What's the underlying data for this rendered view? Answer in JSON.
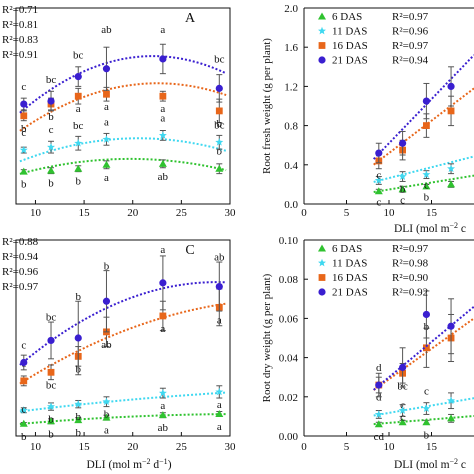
{
  "colors": {
    "d6": "#2fc22f",
    "d11": "#3fd8f0",
    "d16": "#e8661a",
    "d21": "#3a1fd0",
    "axis": "#111111",
    "errorbar": "#555555"
  },
  "chart_data": [
    {
      "id": "A",
      "type": "scatter",
      "panel_label": "A",
      "xlabel": "",
      "ylabel": "",
      "xlim": [
        8,
        30
      ],
      "xticks": [
        10,
        15,
        20,
        25,
        30
      ],
      "ylim": [
        0,
        2.0
      ],
      "grid": false,
      "r2_labels": [
        "R²=0.71",
        "R²=0.81",
        "R²=0.83",
        "R²=0.91"
      ],
      "x": [
        8.8,
        11.6,
        14.4,
        17.3,
        23.1,
        28.9
      ],
      "series": [
        {
          "key": "d6",
          "values": [
            0.33,
            0.34,
            0.36,
            0.4,
            0.41,
            0.36
          ],
          "err": [
            0.02,
            0.03,
            0.03,
            0.04,
            0.04,
            0.05
          ],
          "fit": [
            -0.00118,
            0.0466,
            0.0
          ],
          "letters": [
            {
              "t": "b",
              "dy": 16
            },
            {
              "t": "b",
              "dy": 16
            },
            {
              "t": "b",
              "dy": 16
            },
            {
              "t": "a",
              "dy": 16
            },
            {
              "t": "ab",
              "dy": 16
            },
            {
              "t": "b",
              "dy": -14
            }
          ]
        },
        {
          "key": "d11",
          "values": [
            0.55,
            0.58,
            0.62,
            0.66,
            0.7,
            0.63
          ],
          "err": [
            0.03,
            0.06,
            0.07,
            0.06,
            0.05,
            0.07
          ],
          "fit": [
            -0.00158,
            0.0651,
            0.0
          ],
          "letters": [
            {
              "t": "c",
              "dy": -14
            },
            {
              "t": "c",
              "dy": -14
            },
            {
              "t": "bc",
              "dy": -14
            },
            {
              "t": "a",
              "dy": -14
            },
            {
              "t": "a",
              "dy": -14
            },
            {
              "t": "bc",
              "dy": -14
            }
          ]
        },
        {
          "key": "d16",
          "values": [
            0.9,
            1.02,
            1.1,
            1.12,
            1.1,
            0.95
          ],
          "err": [
            0.05,
            0.06,
            0.08,
            0.07,
            0.05,
            0.12
          ],
          "fit": [
            -0.00242,
            0.1092,
            0.0
          ],
          "letters": [
            {
              "t": "b",
              "dy": 16
            },
            {
              "t": "b",
              "dy": 16
            },
            {
              "t": "a",
              "dy": 16
            },
            {
              "t": "a",
              "dy": 16
            },
            {
              "t": "a",
              "dy": 16
            },
            {
              "t": "b",
              "dy": 16
            }
          ]
        },
        {
          "key": "d21",
          "values": [
            1.02,
            1.05,
            1.3,
            1.38,
            1.48,
            1.18
          ],
          "err": [
            0.06,
            0.1,
            0.1,
            0.22,
            0.15,
            0.14
          ],
          "fit": [
            -0.0031,
            0.1368,
            0.0
          ],
          "letters": [
            {
              "t": "c",
              "dy": -14
            },
            {
              "t": "bc",
              "dy": -18
            },
            {
              "t": "bc",
              "dy": -18
            },
            {
              "t": "ab",
              "dy": -36
            },
            {
              "t": "a",
              "dy": -26
            },
            {
              "t": "bc",
              "dy": -26
            }
          ]
        }
      ]
    },
    {
      "id": "B",
      "type": "scatter",
      "panel_label": "",
      "xlabel": "DLI (mol m",
      "ylabel": "Root fresh weight (g per plant)",
      "xlim": [
        0,
        20
      ],
      "xticks": [
        0,
        5,
        10,
        15
      ],
      "ylim": [
        0,
        2.0
      ],
      "yticks": [
        0.0,
        0.4,
        0.8,
        1.2,
        1.6,
        2.0
      ],
      "yfmt": 1,
      "grid": false,
      "legend": {
        "position": "top-left",
        "entries": [
          {
            "key": "d6",
            "name": "6 DAS",
            "r2": "R²=0.97"
          },
          {
            "key": "d11",
            "name": "11 DAS",
            "r2": "R²=0.96"
          },
          {
            "key": "d16",
            "name": "16 DAS",
            "r2": "R²=0.97"
          },
          {
            "key": "d21",
            "name": "21 DAS",
            "r2": "R²=0.94"
          }
        ]
      },
      "x": [
        8.8,
        11.6,
        14.4,
        17.3
      ],
      "series": [
        {
          "key": "d6",
          "values": [
            0.13,
            0.15,
            0.18,
            0.2
          ],
          "err": [
            0.02,
            0.03,
            0.02,
            0.03
          ],
          "fit": [
            0.0,
            0.0142,
            0.006
          ],
          "letters": [
            {
              "t": "c",
              "dy": 14
            },
            {
              "t": "c",
              "dy": 14
            },
            {
              "t": "b",
              "dy": 14
            },
            {
              "t": "",
              "dy": 14
            }
          ]
        },
        {
          "key": "d11",
          "values": [
            0.24,
            0.28,
            0.3,
            0.36
          ],
          "err": [
            0.04,
            0.05,
            0.04,
            0.05
          ],
          "fit": [
            0.0,
            0.022,
            0.045
          ],
          "letters": [
            {
              "t": "c",
              "dy": -2
            },
            {
              "t": "b",
              "dy": 16
            },
            {
              "t": "c",
              "dy": 14
            },
            {
              "t": "",
              "dy": 14
            }
          ]
        },
        {
          "key": "d16",
          "values": [
            0.44,
            0.55,
            0.8,
            0.95
          ],
          "err": [
            0.08,
            0.1,
            0.12,
            0.15
          ],
          "fit": [
            0.0,
            0.066,
            -0.14
          ],
          "letters": [
            {
              "t": "",
              "dy": 14
            }
          ]
        },
        {
          "key": "d21",
          "values": [
            0.52,
            0.62,
            1.05,
            1.2
          ],
          "err": [
            0.1,
            0.12,
            0.18,
            0.2
          ],
          "fit": [
            0.0,
            0.09,
            -0.28
          ],
          "letters": [
            {
              "t": "",
              "dy": 14
            }
          ]
        }
      ]
    },
    {
      "id": "C",
      "type": "scatter",
      "panel_label": "C",
      "xlabel": "DLI (mol m",
      "ylabel": "",
      "xlim": [
        8,
        30
      ],
      "xticks": [
        10,
        15,
        20,
        25,
        30
      ],
      "ylim": [
        0,
        0.16
      ],
      "grid": false,
      "r2_labels": [
        "R²=0.88",
        "R²=0.94",
        "R²=0.96",
        "R²=0.97"
      ],
      "x": [
        8.8,
        11.6,
        14.4,
        17.3,
        23.1,
        28.9
      ],
      "series": [
        {
          "key": "d6",
          "values": [
            0.01,
            0.012,
            0.013,
            0.015,
            0.017,
            0.018
          ],
          "err": [
            0.001,
            0.002,
            0.002,
            0.002,
            0.002,
            0.002
          ],
          "fit": [
            -1.5e-05,
            0.00095,
            0.0029
          ],
          "letters": [
            {
              "t": "b",
              "dy": 16
            },
            {
              "t": "b",
              "dy": 16
            },
            {
              "t": "b",
              "dy": 16
            },
            {
              "t": "a",
              "dy": 16
            },
            {
              "t": "ab",
              "dy": 16
            },
            {
              "t": "a",
              "dy": 16
            }
          ]
        },
        {
          "key": "d11",
          "values": [
            0.021,
            0.024,
            0.026,
            0.028,
            0.035,
            0.036
          ],
          "err": [
            0.002,
            0.003,
            0.003,
            0.004,
            0.004,
            0.005
          ],
          "fit": [
            -1.2e-05,
            0.00118,
            0.011
          ],
          "letters": [
            {
              "t": "c",
              "dy": 2
            },
            {
              "t": "b",
              "dy": 16
            },
            {
              "t": "b",
              "dy": 16
            },
            {
              "t": "b",
              "dy": 16
            },
            {
              "t": "a",
              "dy": 16
            },
            {
              "t": "a",
              "dy": 16
            }
          ]
        },
        {
          "key": "d16",
          "values": [
            0.045,
            0.052,
            0.065,
            0.085,
            0.098,
            0.105
          ],
          "err": [
            0.004,
            0.006,
            0.008,
            0.012,
            0.012,
            0.015
          ],
          "fit": [
            -9e-05,
            0.0065,
            -0.0055
          ],
          "letters": [
            {
              "t": "c",
              "dy": -14
            },
            {
              "t": "bc",
              "dy": 16
            },
            {
              "t": "b",
              "dy": 16
            },
            {
              "t": "ab",
              "dy": 16
            },
            {
              "t": "a",
              "dy": 16
            },
            {
              "t": "a",
              "dy": 16
            }
          ]
        },
        {
          "key": "d21",
          "values": [
            0.06,
            0.078,
            0.08,
            0.11,
            0.125,
            0.122
          ],
          "err": [
            0.006,
            0.015,
            0.03,
            0.025,
            0.022,
            0.02
          ],
          "fit": [
            -0.000165,
            0.00945,
            -0.0097
          ],
          "letters": [
            {
              "t": "c",
              "dy": -14
            },
            {
              "t": "bc",
              "dy": -20
            },
            {
              "t": "b",
              "dy": -38
            },
            {
              "t": "b",
              "dy": -32
            },
            {
              "t": "a",
              "dy": -30
            },
            {
              "t": "ab",
              "dy": -26
            }
          ]
        }
      ]
    },
    {
      "id": "D",
      "type": "scatter",
      "panel_label": "",
      "xlabel": "DLI (mol m",
      "ylabel": "Root dry weight (g per plant)",
      "xlim": [
        0,
        20
      ],
      "xticks": [
        0,
        5,
        10,
        15
      ],
      "ylim": [
        0,
        0.1
      ],
      "yticks": [
        0.0,
        0.02,
        0.04,
        0.06,
        0.08,
        0.1
      ],
      "yfmt": 2,
      "grid": false,
      "legend": {
        "position": "top-left",
        "entries": [
          {
            "key": "d6",
            "name": "6 DAS",
            "r2": "R²=0.97"
          },
          {
            "key": "d11",
            "name": "11 DAS",
            "r2": "R²=0.98"
          },
          {
            "key": "d16",
            "name": "16 DAS",
            "r2": "R²=0.90"
          },
          {
            "key": "d21",
            "name": "21 DAS",
            "r2": "R²=0.92"
          }
        ]
      },
      "x": [
        8.8,
        11.6,
        14.4,
        17.3
      ],
      "series": [
        {
          "key": "d6",
          "values": [
            0.006,
            0.007,
            0.007,
            0.009
          ],
          "err": [
            0.001,
            0.001,
            0.001,
            0.002
          ],
          "fit": [
            0.0,
            0.00035,
            0.0032
          ],
          "letters": [
            {
              "t": "cd",
              "dy": 16
            },
            {
              "t": "c",
              "dy": -14
            },
            {
              "t": "b",
              "dy": 16
            },
            {
              "t": "",
              "dy": 14
            }
          ]
        },
        {
          "key": "d11",
          "values": [
            0.011,
            0.013,
            0.014,
            0.018
          ],
          "err": [
            0.002,
            0.003,
            0.003,
            0.004
          ],
          "fit": [
            0.0,
            0.00075,
            0.0043
          ],
          "letters": [
            {
              "t": "d",
              "dy": -14
            },
            {
              "t": "c",
              "dy": 10
            },
            {
              "t": "c",
              "dy": -14
            },
            {
              "t": "",
              "dy": 14
            }
          ]
        },
        {
          "key": "d16",
          "values": [
            0.026,
            0.032,
            0.045,
            0.05
          ],
          "err": [
            0.004,
            0.005,
            0.01,
            0.012
          ],
          "fit": [
            0.0,
            0.0031,
            -0.002
          ],
          "letters": [
            {
              "t": "d",
              "dy": -14
            },
            {
              "t": "bc",
              "dy": 16
            },
            {
              "t": "b",
              "dy": -18
            },
            {
              "t": "",
              "dy": 14
            }
          ]
        },
        {
          "key": "d21",
          "values": [
            0.026,
            0.035,
            0.062,
            0.056
          ],
          "err": [
            0.006,
            0.01,
            0.012,
            0.014
          ],
          "fit": [
            0.0,
            0.0036,
            -0.006
          ],
          "letters": [
            {
              "t": "",
              "dy": 14
            },
            {
              "t": "",
              "dy": 14
            },
            {
              "t": "",
              "dy": 14
            },
            {
              "t": "",
              "dy": 14
            }
          ]
        }
      ]
    }
  ]
}
